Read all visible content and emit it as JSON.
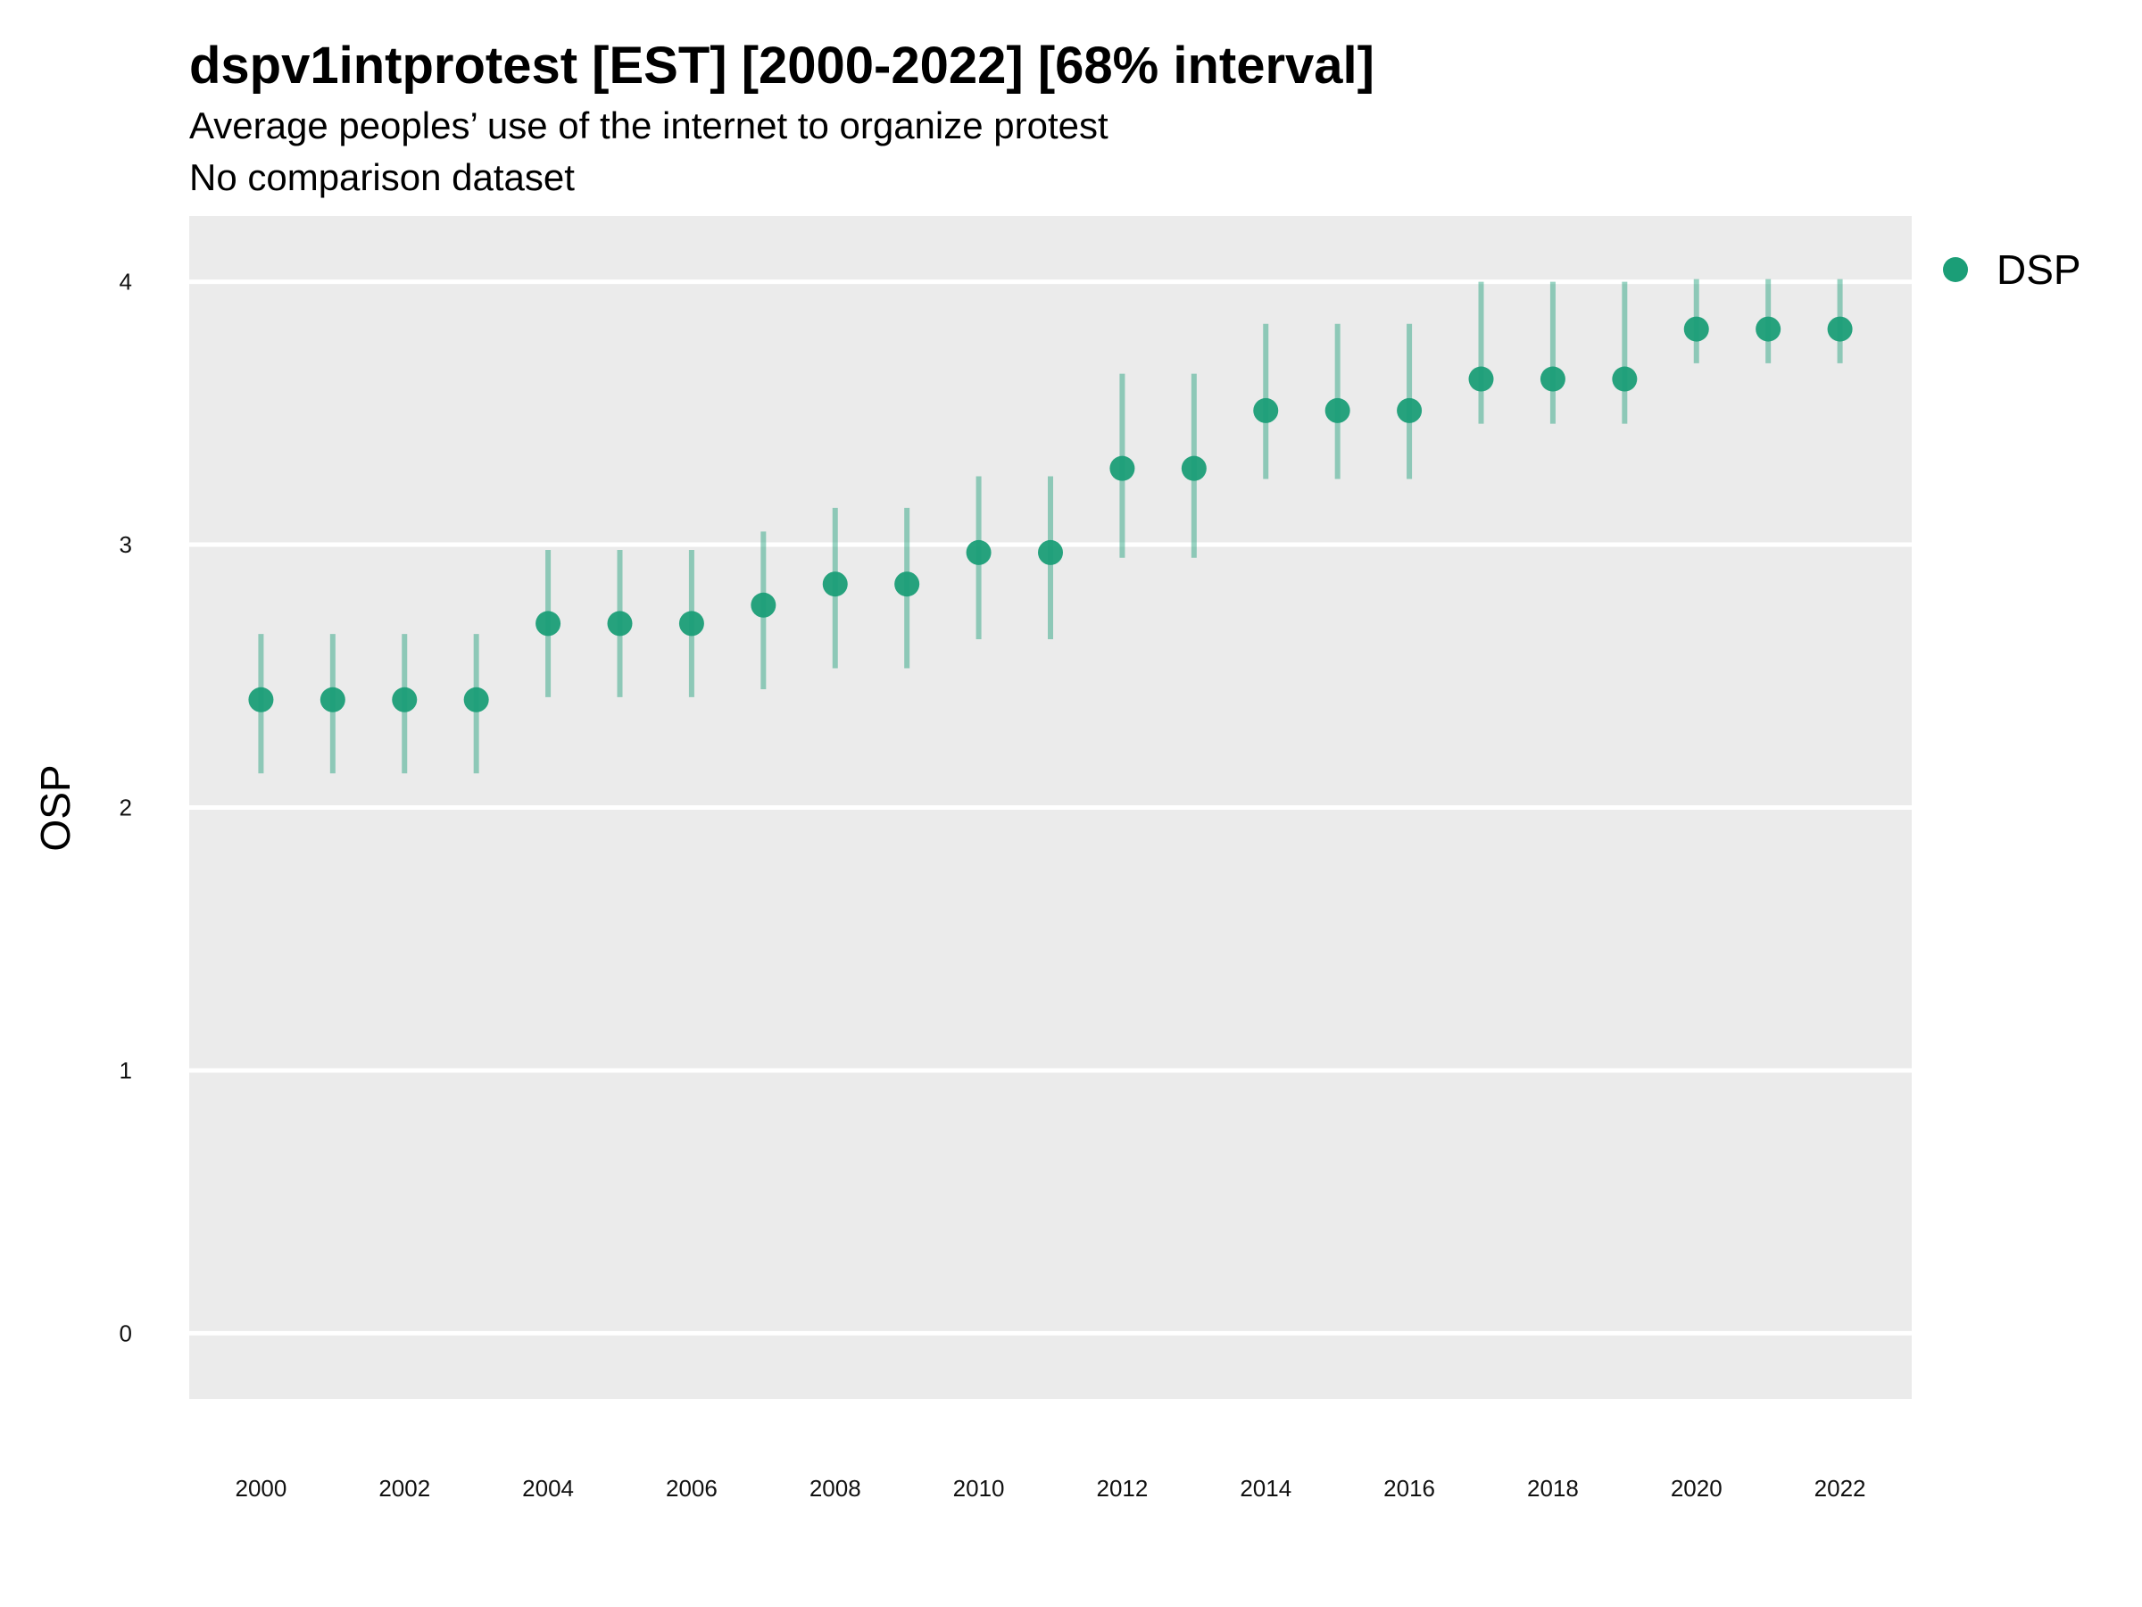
{
  "chart_data": {
    "type": "scatter",
    "title": "dspv1intprotest [EST] [2000-2022] [68% interval]",
    "subtitle": "Average peoples’ use of the internet to organize protest",
    "subtitle2": "No comparison dataset",
    "xlabel": "",
    "ylabel": "OSP",
    "x": [
      2000,
      2001,
      2002,
      2003,
      2004,
      2005,
      2006,
      2007,
      2008,
      2009,
      2010,
      2011,
      2012,
      2013,
      2014,
      2015,
      2016,
      2017,
      2018,
      2019,
      2020,
      2021,
      2022
    ],
    "xlim": [
      1999,
      2023
    ],
    "ylim": [
      -0.25,
      4.25
    ],
    "x_ticks": [
      "2000",
      "2002",
      "2004",
      "2006",
      "2008",
      "2010",
      "2012",
      "2014",
      "2016",
      "2018",
      "2020",
      "2022"
    ],
    "y_ticks": [
      "0",
      "1",
      "2",
      "3",
      "4"
    ],
    "grid": true,
    "legend_position": "top-right",
    "series": [
      {
        "name": "DSP",
        "color": "#1b9e77",
        "values": [
          2.41,
          2.41,
          2.41,
          2.41,
          2.7,
          2.7,
          2.7,
          2.77,
          2.85,
          2.85,
          2.97,
          2.97,
          3.29,
          3.29,
          3.51,
          3.51,
          3.51,
          3.63,
          3.63,
          3.63,
          3.82,
          3.82,
          3.82
        ],
        "lower": [
          2.13,
          2.13,
          2.13,
          2.13,
          2.42,
          2.42,
          2.42,
          2.45,
          2.53,
          2.53,
          2.64,
          2.64,
          2.95,
          2.95,
          3.25,
          3.25,
          3.25,
          3.46,
          3.46,
          3.46,
          3.69,
          3.69,
          3.69
        ],
        "upper": [
          2.66,
          2.66,
          2.66,
          2.66,
          2.98,
          2.98,
          2.98,
          3.05,
          3.14,
          3.14,
          3.26,
          3.26,
          3.65,
          3.65,
          3.84,
          3.84,
          3.84,
          4.0,
          4.0,
          4.0,
          4.01,
          4.01,
          4.01
        ]
      }
    ]
  }
}
